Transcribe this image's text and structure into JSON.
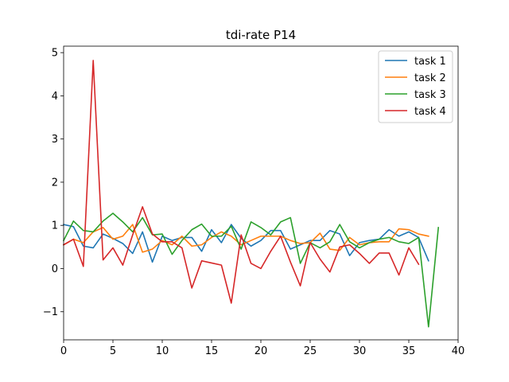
{
  "chart_data": {
    "type": "line",
    "title": "tdi-rate P14",
    "xlabel": "",
    "ylabel": "",
    "xlim": [
      0,
      40
    ],
    "ylim": [
      -1.65,
      5.15
    ],
    "xticks": [
      0,
      5,
      10,
      15,
      20,
      25,
      30,
      35,
      40
    ],
    "yticks": [
      -1,
      0,
      1,
      2,
      3,
      4,
      5
    ],
    "xtick_labels": [
      "0",
      "5",
      "10",
      "15",
      "20",
      "25",
      "30",
      "35",
      "40"
    ],
    "ytick_labels": [
      "−1",
      "0",
      "1",
      "2",
      "3",
      "4",
      "5"
    ],
    "grid": false,
    "legend_position": "top-right",
    "series": [
      {
        "name": "task 1",
        "color": "#1f77b4",
        "x": [
          0,
          1,
          2,
          3,
          4,
          5,
          6,
          7,
          8,
          9,
          10,
          11,
          12,
          13,
          14,
          15,
          16,
          17,
          18,
          19,
          20,
          21,
          22,
          23,
          24,
          25,
          26,
          27,
          28,
          29,
          30,
          31,
          32,
          33,
          34,
          35,
          36,
          37
        ],
        "y": [
          1.02,
          0.97,
          0.52,
          0.48,
          0.8,
          0.7,
          0.58,
          0.35,
          0.85,
          0.15,
          0.75,
          0.65,
          0.72,
          0.72,
          0.4,
          0.9,
          0.6,
          1.02,
          0.7,
          0.52,
          0.65,
          0.88,
          0.88,
          0.45,
          0.55,
          0.65,
          0.65,
          0.88,
          0.8,
          0.3,
          0.6,
          0.65,
          0.68,
          0.9,
          0.75,
          0.85,
          0.72,
          0.18
        ]
      },
      {
        "name": "task 2",
        "color": "#ff7f0e",
        "x": [
          0,
          1,
          2,
          3,
          4,
          5,
          6,
          7,
          8,
          9,
          10,
          11,
          12,
          13,
          14,
          15,
          16,
          17,
          18,
          19,
          20,
          21,
          22,
          23,
          24,
          25,
          26,
          27,
          28,
          29,
          30,
          31,
          32,
          33,
          34,
          35,
          36,
          37
        ],
        "y": [
          0.55,
          0.68,
          0.6,
          0.85,
          0.95,
          0.68,
          0.75,
          1.02,
          0.38,
          0.45,
          0.65,
          0.55,
          0.75,
          0.52,
          0.55,
          0.72,
          0.85,
          0.75,
          0.55,
          0.65,
          0.75,
          0.75,
          0.75,
          0.65,
          0.58,
          0.6,
          0.82,
          0.45,
          0.42,
          0.72,
          0.55,
          0.6,
          0.62,
          0.62,
          0.92,
          0.9,
          0.8,
          0.75
        ]
      },
      {
        "name": "task 3",
        "color": "#2ca02c",
        "x": [
          0,
          1,
          2,
          3,
          4,
          5,
          6,
          7,
          8,
          9,
          10,
          11,
          12,
          13,
          14,
          15,
          16,
          17,
          18,
          19,
          20,
          21,
          22,
          23,
          24,
          25,
          26,
          27,
          28,
          29,
          30,
          31,
          32,
          33,
          34,
          35,
          36,
          37,
          38
        ],
        "y": [
          0.65,
          1.1,
          0.88,
          0.85,
          1.1,
          1.28,
          1.08,
          0.85,
          1.18,
          0.78,
          0.8,
          0.33,
          0.65,
          0.9,
          1.03,
          0.75,
          0.75,
          0.98,
          0.45,
          1.08,
          0.95,
          0.78,
          1.08,
          1.18,
          0.12,
          0.6,
          0.48,
          0.62,
          1.02,
          0.62,
          0.48,
          0.6,
          0.68,
          0.72,
          0.62,
          0.58,
          0.72,
          -1.35,
          0.95
        ]
      },
      {
        "name": "task 4",
        "color": "#d62728",
        "x": [
          0,
          1,
          2,
          3,
          4,
          5,
          6,
          7,
          8,
          9,
          10,
          11,
          12,
          13,
          14,
          15,
          16,
          17,
          18,
          19,
          20,
          21,
          22,
          23,
          24,
          25,
          26,
          27,
          28,
          29,
          30,
          31,
          32,
          33,
          34,
          35,
          36
        ],
        "y": [
          0.55,
          0.68,
          0.05,
          4.82,
          0.2,
          0.48,
          0.08,
          0.78,
          1.43,
          0.8,
          0.62,
          0.62,
          0.48,
          -0.45,
          0.18,
          0.13,
          0.08,
          -0.8,
          0.78,
          0.12,
          0.0,
          0.4,
          0.75,
          0.15,
          -0.4,
          0.6,
          0.22,
          -0.08,
          0.5,
          0.55,
          0.35,
          0.12,
          0.36,
          0.36,
          -0.15,
          0.48,
          0.1
        ]
      }
    ]
  }
}
